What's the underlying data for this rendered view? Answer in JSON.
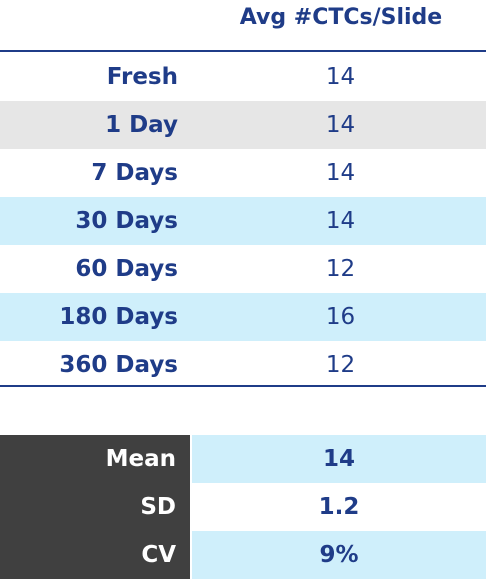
{
  "table": {
    "header": "Avg #CTCs/Slide",
    "rows": [
      {
        "label": "Fresh",
        "value": "14"
      },
      {
        "label": "1 Day",
        "value": "14"
      },
      {
        "label": "7 Days",
        "value": "14"
      },
      {
        "label": "30 Days",
        "value": "14"
      },
      {
        "label": "60 Days",
        "value": "12"
      },
      {
        "label": "180 Days",
        "value": "16"
      },
      {
        "label": "360 Days",
        "value": "12"
      }
    ]
  },
  "stats": [
    {
      "label": "Mean",
      "value": "14"
    },
    {
      "label": "SD",
      "value": "1.2"
    },
    {
      "label": "CV",
      "value": "9%"
    }
  ],
  "colors": {
    "text_primary": "#1f3c88",
    "row_gray": "#e6e6e6",
    "row_light_blue": "#cfeffb",
    "stat_label_bg": "#404040"
  }
}
